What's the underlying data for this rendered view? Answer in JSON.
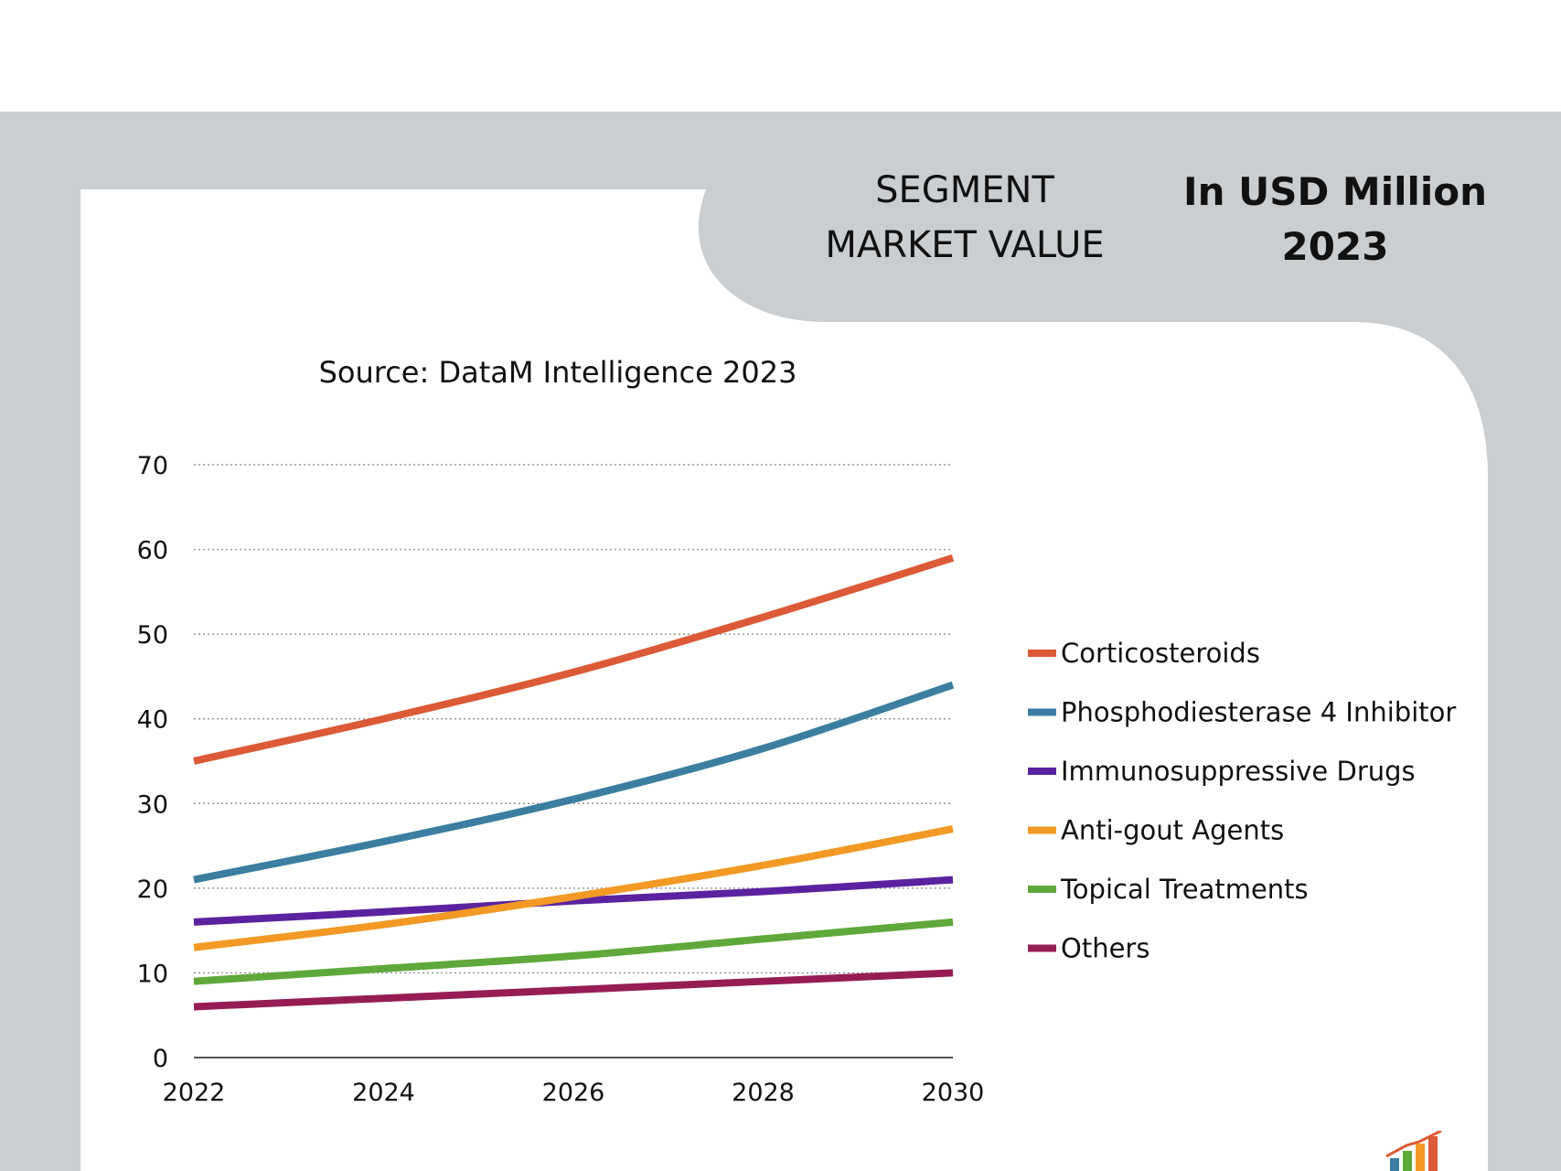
{
  "header": {
    "segment_line1": "SEGMENT",
    "segment_line2": "MARKET VALUE",
    "unit_line1": "In USD Million",
    "unit_line2": "2023"
  },
  "source": "Source: DataM Intelligence 2023",
  "chart_data": {
    "type": "line",
    "title": "",
    "xlabel": "",
    "ylabel": "",
    "x": [
      2022,
      2024,
      2026,
      2028,
      2030
    ],
    "xticks": [
      "2022",
      "2024",
      "2026",
      "2028",
      "2030"
    ],
    "yticks": [
      "0",
      "10",
      "20",
      "30",
      "40",
      "50",
      "60",
      "70"
    ],
    "ylim": [
      0,
      70
    ],
    "xlim": [
      2022,
      2030
    ],
    "grid": "horizontal dotted",
    "legend_position": "right",
    "series": [
      {
        "name": "Corticosteroids",
        "color": "#dc5a37",
        "values": [
          35,
          40,
          45.5,
          52,
          59
        ]
      },
      {
        "name": "Phosphodiesterase 4 Inhibitor",
        "color": "#3b7ea1",
        "values": [
          21,
          25.5,
          30.5,
          36.5,
          44
        ]
      },
      {
        "name": "Immunosuppressive Drugs",
        "color": "#5b22a0",
        "values": [
          16,
          17.2,
          18.5,
          19.6,
          21
        ]
      },
      {
        "name": "Anti-gout Agents",
        "color": "#f29a25",
        "values": [
          13,
          15.7,
          19,
          22.7,
          27
        ]
      },
      {
        "name": "Topical Treatments",
        "color": "#5fa83a",
        "values": [
          9,
          10.5,
          12,
          14,
          16
        ]
      },
      {
        "name": "Others",
        "color": "#961d54",
        "values": [
          6,
          7,
          8,
          9,
          10
        ]
      }
    ]
  }
}
